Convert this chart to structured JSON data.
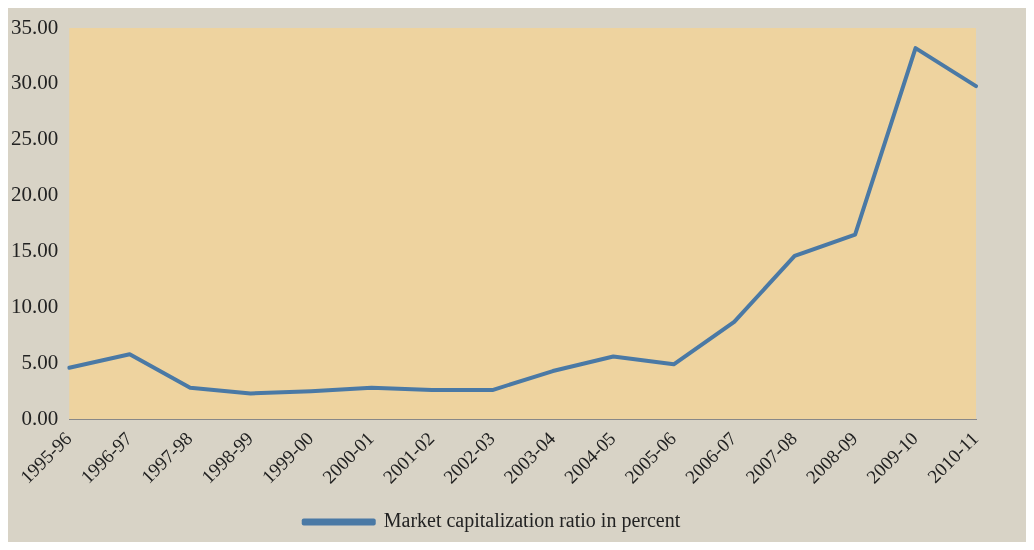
{
  "chart_data": {
    "type": "line",
    "categories": [
      "1995-96",
      "1996-97",
      "1997-98",
      "1998-99",
      "1999-00",
      "2000-01",
      "2001-02",
      "2002-03",
      "2003-04",
      "2004-05",
      "2005-06",
      "2006-07",
      "2007-08",
      "2008-09",
      "2009-10",
      "2010-11"
    ],
    "series": [
      {
        "name": "Market capitalization ratio in percent",
        "color": "#4a79a5",
        "values": [
          4.6,
          5.8,
          2.8,
          2.3,
          2.5,
          2.8,
          2.6,
          2.6,
          4.3,
          5.6,
          4.9,
          8.7,
          14.6,
          16.5,
          33.2,
          29.8
        ]
      }
    ],
    "ylim": [
      0,
      35
    ],
    "yticks": [
      {
        "value": 0,
        "label": "0.00"
      },
      {
        "value": 5,
        "label": "5.00"
      },
      {
        "value": 10,
        "label": "10.00"
      },
      {
        "value": 15,
        "label": "15.00"
      },
      {
        "value": 20,
        "label": "20.00"
      },
      {
        "value": 25,
        "label": "25.00"
      },
      {
        "value": 30,
        "label": "30.00"
      },
      {
        "value": 35,
        "label": "35.00"
      }
    ],
    "grid": false,
    "legend": "bottom",
    "marker": "none",
    "line_style": "solid"
  }
}
